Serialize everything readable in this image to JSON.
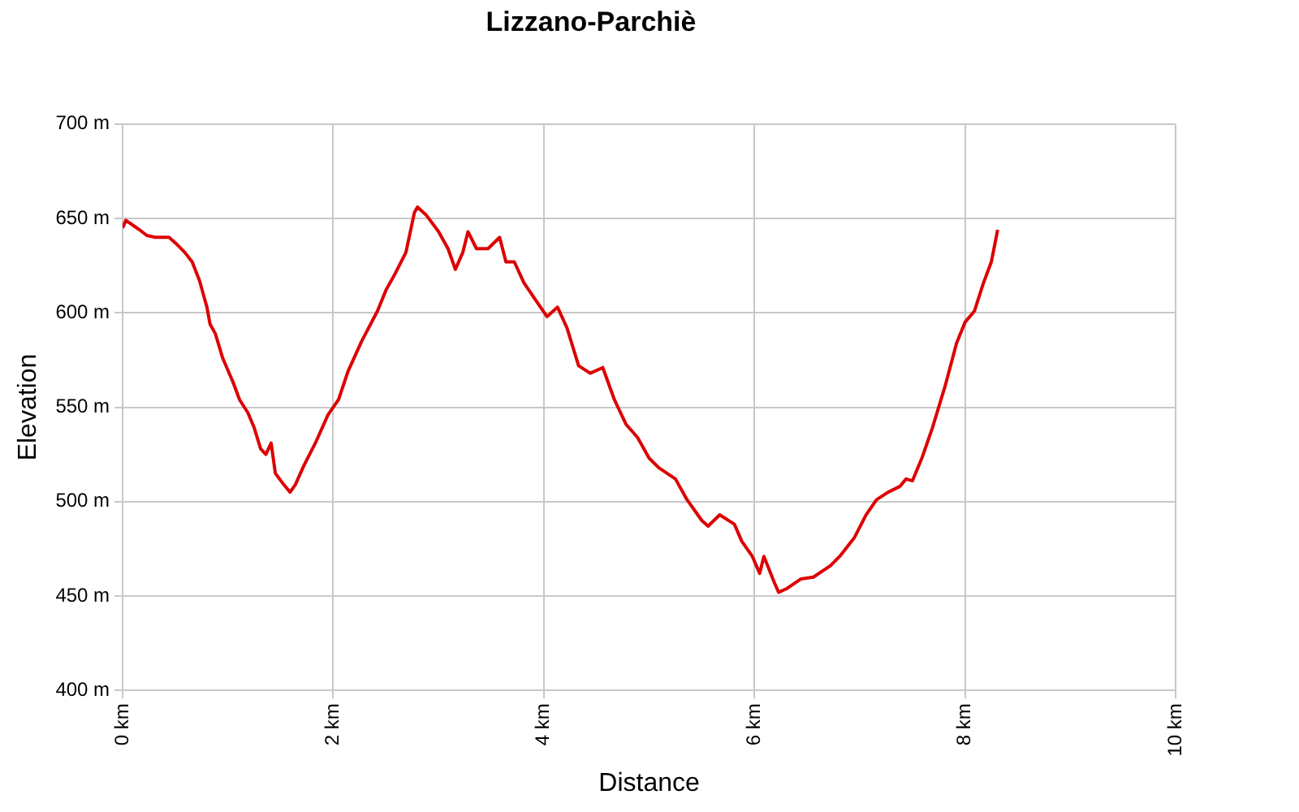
{
  "chart_data": {
    "type": "line",
    "title": "Lizzano-Parchiè",
    "xlabel": "Distance",
    "ylabel": "Elevation",
    "xlim": [
      0,
      10
    ],
    "ylim": [
      400,
      700
    ],
    "xticks": [
      {
        "value": 0,
        "label": "0 km"
      },
      {
        "value": 2,
        "label": "2 km"
      },
      {
        "value": 4,
        "label": "4 km"
      },
      {
        "value": 6,
        "label": "6 km"
      },
      {
        "value": 8,
        "label": "8 km"
      },
      {
        "value": 10,
        "label": "10 km"
      }
    ],
    "yticks": [
      {
        "value": 400,
        "label": "400 m"
      },
      {
        "value": 450,
        "label": "450 m"
      },
      {
        "value": 500,
        "label": "500 m"
      },
      {
        "value": 550,
        "label": "550 m"
      },
      {
        "value": 600,
        "label": "600 m"
      },
      {
        "value": 650,
        "label": "650 m"
      },
      {
        "value": 700,
        "label": "700 m"
      }
    ],
    "grid": true,
    "legend": false,
    "marker": "none",
    "line_style": "solid",
    "x": [
      0,
      0.03,
      0.16,
      0.23,
      0.31,
      0.44,
      0.52,
      0.59,
      0.66,
      0.73,
      0.8,
      0.83,
      0.88,
      0.95,
      1.05,
      1.11,
      1.19,
      1.25,
      1.31,
      1.36,
      1.41,
      1.45,
      1.53,
      1.59,
      1.64,
      1.72,
      1.83,
      1.95,
      2.05,
      2.14,
      2.27,
      2.42,
      2.5,
      2.59,
      2.69,
      2.77,
      2.8,
      2.88,
      3.0,
      3.09,
      3.16,
      3.23,
      3.28,
      3.36,
      3.47,
      3.58,
      3.64,
      3.72,
      3.81,
      3.92,
      4.03,
      4.13,
      4.22,
      4.33,
      4.44,
      4.56,
      4.67,
      4.78,
      4.89,
      5.0,
      5.09,
      5.25,
      5.36,
      5.5,
      5.56,
      5.67,
      5.81,
      5.88,
      5.98,
      6.05,
      6.09,
      6.19,
      6.23,
      6.31,
      6.44,
      6.56,
      6.72,
      6.81,
      6.95,
      7.06,
      7.16,
      7.27,
      7.38,
      7.44,
      7.5,
      7.59,
      7.69,
      7.81,
      7.92,
      8.0,
      8.09,
      8.17,
      8.25,
      8.31
    ],
    "series": [
      {
        "color": "#dd0000",
        "values": [
          645,
          649,
          644,
          641,
          640,
          640,
          636,
          632,
          627,
          617,
          603,
          594,
          589,
          576,
          563,
          554,
          547,
          539,
          528,
          525,
          531,
          515,
          509,
          505,
          509,
          519,
          531,
          546,
          554,
          569,
          585,
          601,
          612,
          621,
          632,
          653,
          656,
          652,
          643,
          634,
          623,
          632,
          643,
          634,
          634,
          640,
          627,
          627,
          616,
          607,
          598,
          603,
          592,
          572,
          568,
          571,
          554,
          541,
          534,
          523,
          518,
          512,
          501,
          490,
          487,
          493,
          488,
          479,
          471,
          462,
          471,
          457,
          452,
          454,
          459,
          460,
          466,
          471,
          481,
          493,
          501,
          505,
          508,
          512,
          511,
          523,
          539,
          561,
          584,
          595,
          601,
          615,
          627,
          644
        ]
      }
    ]
  }
}
